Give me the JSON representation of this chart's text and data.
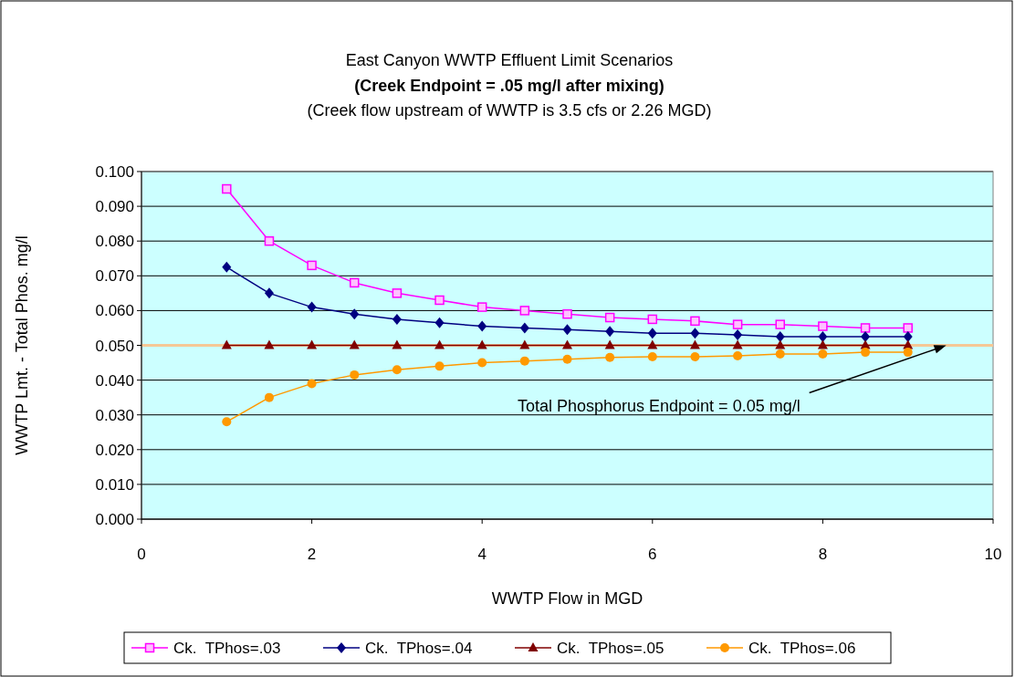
{
  "chart_data": {
    "type": "line",
    "title": "East Canyon WWTP Effluent Limit Scenarios",
    "subtitle": [
      "(Creek Endpoint = .05 mg/l after mixing)",
      "(Creek flow upstream of WWTP is 3.5 cfs or 2.26 MGD)"
    ],
    "xlabel": "WWTP Flow in MGD",
    "ylabel": "WWTP Lmt. - Total Phos. mg/l",
    "x": [
      1,
      1.5,
      2,
      2.5,
      3,
      3.5,
      4,
      4.5,
      5,
      5.5,
      6,
      6.5,
      7,
      7.5,
      8,
      8.5,
      9
    ],
    "series": [
      {
        "name": "Ck.  TPhos=.03",
        "color": "#ff00ff",
        "marker": "square",
        "values": [
          0.095,
          0.08,
          0.073,
          0.068,
          0.065,
          0.063,
          0.061,
          0.06,
          0.059,
          0.058,
          0.0575,
          0.057,
          0.056,
          0.056,
          0.0555,
          0.055,
          0.055
        ]
      },
      {
        "name": "Ck.  TPhos=.04",
        "color": "#000080",
        "marker": "diamond",
        "values": [
          0.0725,
          0.065,
          0.061,
          0.059,
          0.0575,
          0.0565,
          0.0555,
          0.055,
          0.0545,
          0.054,
          0.0535,
          0.0535,
          0.053,
          0.0525,
          0.0525,
          0.0525,
          0.0525
        ]
      },
      {
        "name": "Ck.  TPhos=.05",
        "color": "#800000",
        "marker": "triangle",
        "values": [
          0.05,
          0.05,
          0.05,
          0.05,
          0.05,
          0.05,
          0.05,
          0.05,
          0.05,
          0.05,
          0.05,
          0.05,
          0.05,
          0.05,
          0.05,
          0.05,
          0.05
        ]
      },
      {
        "name": "Ck.  TPhos=.06",
        "color": "#ff9900",
        "marker": "circle",
        "values": [
          0.028,
          0.035,
          0.039,
          0.0415,
          0.043,
          0.044,
          0.045,
          0.0455,
          0.046,
          0.0465,
          0.0467,
          0.0467,
          0.047,
          0.0475,
          0.0475,
          0.048,
          0.048
        ]
      }
    ],
    "xlim": [
      0,
      10
    ],
    "xticks": [
      0,
      2,
      4,
      6,
      8,
      10
    ],
    "ylim": [
      0,
      0.1
    ],
    "yticks": [
      {
        "value": 0,
        "label": "0.000"
      },
      {
        "value": 0.01,
        "label": "0.010"
      },
      {
        "value": 0.02,
        "label": "0.020"
      },
      {
        "value": 0.03,
        "label": "0.030"
      },
      {
        "value": 0.04,
        "label": "0.040"
      },
      {
        "value": 0.05,
        "label": "0.050"
      },
      {
        "value": 0.06,
        "label": "0.060"
      },
      {
        "value": 0.07,
        "label": "0.070"
      },
      {
        "value": 0.08,
        "label": "0.080"
      },
      {
        "value": 0.09,
        "label": "0.090"
      },
      {
        "value": 0.1,
        "label": "0.100"
      }
    ],
    "ref_lines": [
      {
        "axis": "y",
        "value": 0.05,
        "color": "#f5c895"
      }
    ],
    "annotations": [
      {
        "text": "Total Phosphorus Endpoint = 0.05 mg/l",
        "x": 9.45,
        "y": 0.05
      }
    ],
    "grid": "y",
    "legend": "bottom",
    "line_style": "solid"
  }
}
